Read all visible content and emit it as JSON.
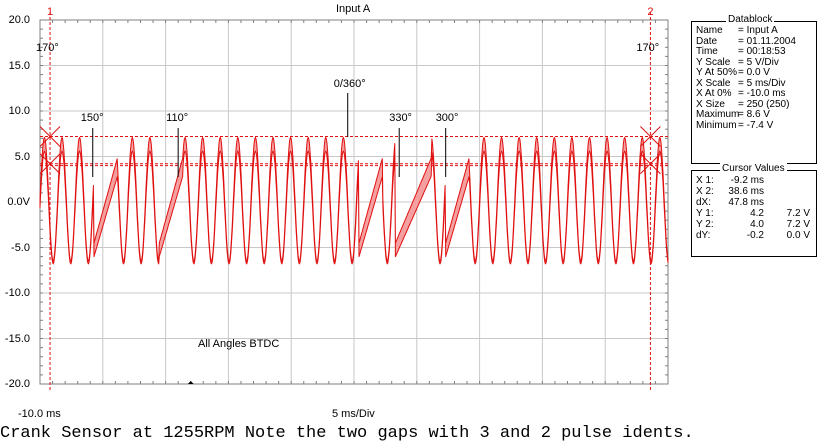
{
  "chart_data": {
    "type": "line",
    "title": "Input A",
    "x_start_label": "-10.0 ms",
    "x_scale_label": "5 ms/Div",
    "y_ticks": [
      "20.0",
      "15.0",
      "10.0",
      "5.0",
      "0.0V",
      "-5.0",
      "-10.0",
      "-15.0",
      "-20.0"
    ],
    "ylim": [
      -20,
      20
    ],
    "xlim_ms": [
      -10,
      40
    ],
    "grid": true,
    "series": [
      {
        "color": "#e01010"
      }
    ],
    "reference_levels_v": [
      7.2,
      4.2,
      4.0
    ],
    "cursors": [
      {
        "label": "1",
        "x_ms": -9.2
      },
      {
        "label": "2",
        "x_ms": 38.6
      }
    ],
    "annotations": [
      {
        "text": "170°",
        "x_ms": -9.2
      },
      {
        "text": "170°",
        "x_ms": 38.6
      },
      {
        "text": "150°",
        "x_ms": -5.8
      },
      {
        "text": "110°",
        "x_ms": 1.0
      },
      {
        "text": "0/360°",
        "x_ms": 14.5
      },
      {
        "text": "330°",
        "x_ms": 18.6
      },
      {
        "text": "300°",
        "x_ms": 22.3
      },
      {
        "text": "All Angles BTDC"
      }
    ]
  },
  "datablock": {
    "title": "Datablock",
    "rows": [
      {
        "key": "Name",
        "value": "= Input A"
      },
      {
        "key": "Date",
        "value": "= 01.11.2004"
      },
      {
        "key": "Time",
        "value": "= 00:18:53"
      },
      {
        "key": "Y Scale",
        "value": "=   5   V/Div"
      },
      {
        "key": "Y At 50%",
        "value": "=   0.0 V"
      },
      {
        "key": "X Scale",
        "value": "=   5   ms/Div"
      },
      {
        "key": "X At 0%",
        "value": "= -10.0 ms"
      },
      {
        "key": "X Size",
        "value": "=  250 (250)"
      },
      {
        "key": "Maximum",
        "value": "=   8.6 V"
      },
      {
        "key": "Minimum",
        "value": "=  -7.4 V"
      }
    ]
  },
  "cursor_values": {
    "title": "Cursor Values",
    "rows": [
      {
        "key": "X 1:",
        "a": "-9.2 ms",
        "b": ""
      },
      {
        "key": "X 2:",
        "a": "38.6 ms",
        "b": ""
      },
      {
        "key": "dX:",
        "a": "47.8 ms",
        "b": ""
      },
      {
        "key": "Y 1:",
        "a": "4.2",
        "b": "7.2 V"
      },
      {
        "key": "Y 2:",
        "a": "4.0",
        "b": "7.2 V"
      },
      {
        "key": "dY:",
        "a": "-0.2",
        "b": "0.0 V"
      }
    ]
  },
  "caption": "Crank Sensor at 1255RPM Note the two gaps with 3 and 2 pulse idents."
}
